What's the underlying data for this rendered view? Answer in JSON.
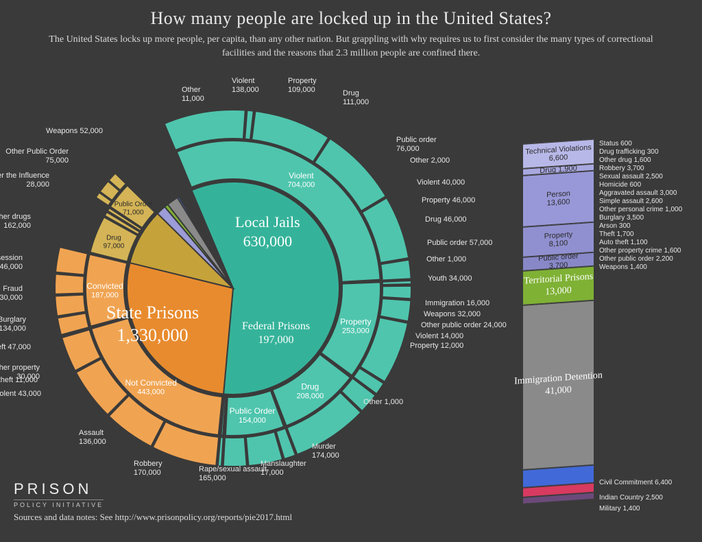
{
  "title": "How many people are locked up in the United States?",
  "subtitle": "The United States locks up more people, per capita, than any other nation.  But grappling with why requires us to first consider the many types of correctional facilities and the reasons that 2.3 million people are confined there.",
  "logo": {
    "line1": "PRISON",
    "line2": "POLICY INITIATIVE"
  },
  "sources": "Sources and data notes: See http://www.prisonpolicy.org/reports/pie2017.html",
  "colors": {
    "bg": "#3a3a3a",
    "state": "#35b39a",
    "state_light": "#4fc5ad",
    "local": "#e88b2e",
    "local_light": "#f0a452",
    "federal": "#c6a23a",
    "federal_light": "#d4b456",
    "youth": "#9c9cd8",
    "territorial": "#7fb135",
    "immigration": "#8a8a8a",
    "civil": "#4169d8",
    "indian": "#d83a60",
    "military": "#6b4a7a",
    "white": "#ffffff"
  },
  "pie": {
    "total": 2300000,
    "segments": [
      {
        "name": "State Prisons",
        "value": 1330000,
        "color": "#35b39a"
      },
      {
        "name": "Local Jails",
        "value": 630000,
        "color": "#e88b2e"
      },
      {
        "name": "Federal Prisons",
        "value": 197000,
        "color": "#c6a23a"
      },
      {
        "name": "Youth",
        "value": 34000,
        "color": "#9c9cd8"
      },
      {
        "name": "Territorial Prisons",
        "value": 13000,
        "color": "#7fb135"
      },
      {
        "name": "Immigration Detention",
        "value": 41000,
        "color": "#8a8a8a"
      },
      {
        "name": "Civil Commitment",
        "value": 6400,
        "color": "#4169d8"
      },
      {
        "name": "Indian Country",
        "value": 2500,
        "color": "#d83a60"
      },
      {
        "name": "Military",
        "value": 1400,
        "color": "#6b4a7a"
      }
    ],
    "state_mid": [
      {
        "label": "Violent",
        "value": 704000
      },
      {
        "label": "Property",
        "value": 253000
      },
      {
        "label": "Drug",
        "value": 208000
      },
      {
        "label": "Public Order",
        "value": 154000
      },
      {
        "label": "Other",
        "value": 11000
      }
    ],
    "state_outer": [
      {
        "label": "Murder",
        "value": 174000
      },
      {
        "label": "Manslaughter",
        "value": 17000
      },
      {
        "label": "Rape/sexual assault",
        "value": 165000
      },
      {
        "label": "Robbery",
        "value": 170000
      },
      {
        "label": "Assault",
        "value": 136000
      },
      {
        "label": "Other violent",
        "value": 43000
      },
      {
        "label": "Car theft",
        "value": 11000
      },
      {
        "label": "Other property",
        "value": 30000
      },
      {
        "label": "Theft",
        "value": 47000
      },
      {
        "label": "Burglary",
        "value": 134000
      },
      {
        "label": "Fraud",
        "value": 30000
      },
      {
        "label": "Drug possession",
        "value": 46000
      },
      {
        "label": "Other drugs",
        "value": 162000
      },
      {
        "label": "Driving Under the Influence",
        "value": 28000
      },
      {
        "label": "Other Public Order",
        "value": 75000
      },
      {
        "label": "Weapons",
        "value": 52000
      },
      {
        "label": "Other",
        "value": 11000
      }
    ],
    "local_mid": [
      {
        "label": "Not Convicted",
        "value": 443000
      },
      {
        "label": "Convicted",
        "value": 187000
      }
    ],
    "local_outer_nc": [
      {
        "label": "Violent",
        "value": 138000
      },
      {
        "label": "Property",
        "value": 109000
      },
      {
        "label": "Drug",
        "value": 111000
      },
      {
        "label": "Public order",
        "value": 76000
      },
      {
        "label": "Other",
        "value": 2000
      }
    ],
    "local_outer_c": [
      {
        "label": "Violent",
        "value": 40000
      },
      {
        "label": "Property",
        "value": 46000
      },
      {
        "label": "Drug",
        "value": 46000
      },
      {
        "label": "Public order",
        "value": 57000
      },
      {
        "label": "Other",
        "value": 1000
      }
    ],
    "federal_mid": [
      {
        "label": "Drug",
        "value": 97000
      },
      {
        "label": "Violent",
        "value": 14000
      },
      {
        "label": "Property",
        "value": 12000
      },
      {
        "label": "Public Order",
        "value": 71000
      },
      {
        "label": "Other",
        "value": 1000
      }
    ],
    "federal_outer": [
      {
        "label": "Immigration",
        "value": 16000
      },
      {
        "label": "Weapons",
        "value": 32000
      },
      {
        "label": "Other public order",
        "value": 24000
      }
    ]
  },
  "sidebar": {
    "youth": {
      "title": "Youth 34,000",
      "segments": [
        {
          "label": "Technical Violations",
          "value": 6600,
          "color": "#b8b8e8"
        },
        {
          "label": "Drug",
          "value": 1900,
          "color": "#a8a8e0"
        },
        {
          "label": "Person",
          "value": 13600,
          "color": "#9898d8"
        },
        {
          "label": "Property",
          "value": 8100,
          "color": "#9090d0"
        },
        {
          "label": "Public order",
          "value": 3700,
          "color": "#8888c8"
        }
      ],
      "detail": [
        "Status  600",
        "Drug trafficking  300",
        "Other drug  1,600",
        "Robbery 3,700",
        "Sexual assault 2,500",
        "Homicide 600",
        "Aggravated assault 3,000",
        "Simple assault 2,600",
        "Other personal crime 1,000",
        "Burglary 3,500",
        "Arson 300",
        "Theft 1,700",
        "Auto theft 1,100",
        "Other property crime 1,600",
        "Other public order 2,200",
        "Weapons 1,400"
      ]
    },
    "territorial": {
      "label": "Territorial Prisons",
      "value": "13,000",
      "color": "#7fb135"
    },
    "immigration": {
      "label": "Immigration Detention",
      "value": "41,000",
      "color": "#8a8a8a"
    },
    "bottom": [
      {
        "label": "Civil Commitment 6,400",
        "color": "#4169d8"
      },
      {
        "label": "Indian Country 2,500",
        "color": "#d83a60"
      },
      {
        "label": "Military 1,400",
        "color": "#6b4a7a"
      }
    ]
  },
  "chart_style": {
    "inner_radius": 155,
    "mid_radius": 215,
    "outer_radius": 260,
    "gap_deg": 1.5,
    "start_angle": -23
  }
}
